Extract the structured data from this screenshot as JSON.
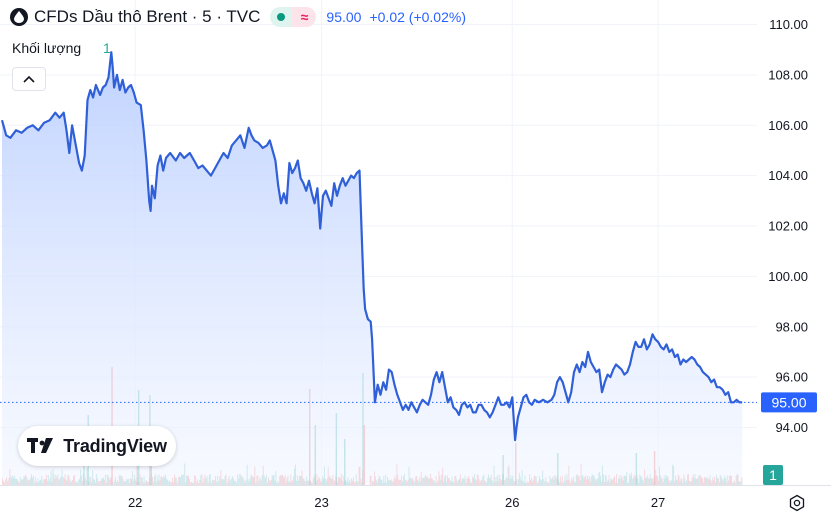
{
  "header": {
    "title": "CFDs Dầu thô Brent · 5 · TVC",
    "approx_symbol": "≈",
    "price": "95.00",
    "change": "+0.02 (+0.02%)"
  },
  "volume_indicator": {
    "label": "Khối lượng",
    "value": "1",
    "axis_badge": "1"
  },
  "logo": {
    "text": "TradingView"
  },
  "icons": {
    "symbol": "drop-icon",
    "market_status": "green-dot-icon",
    "collapse": "chevron-up-icon",
    "settings": "gear-icon"
  },
  "colors": {
    "line": "#3060d8",
    "area_top": "#bcd0ff",
    "area_bottom": "#f2f6ff",
    "up_volume": "#26a69a",
    "down_volume": "#ef5350",
    "last_price_label": "#2962ff",
    "volume_badge": "#26a69a"
  },
  "chart_data": {
    "type": "area",
    "title": "CFDs Dầu thô Brent · 5 · TVC",
    "xlabel": "",
    "ylabel": "",
    "x_ticks": [
      {
        "label": "22",
        "x": 95
      },
      {
        "label": "23",
        "x": 228
      },
      {
        "label": "26",
        "x": 364
      },
      {
        "label": "27",
        "x": 468
      }
    ],
    "y_ticks": [
      "94.00",
      "96.00",
      "98.00",
      "100.00",
      "102.00",
      "104.00",
      "106.00",
      "108.00",
      "110.00"
    ],
    "ylim": [
      92.5,
      111
    ],
    "xlim": [
      0,
      540
    ],
    "last_price": "95.00",
    "grid": true,
    "series": [
      {
        "values": [
          [
            0,
            106.2
          ],
          [
            3,
            105.6
          ],
          [
            6,
            105.5
          ],
          [
            10,
            105.8
          ],
          [
            14,
            105.7
          ],
          [
            18,
            105.9
          ],
          [
            22,
            106.0
          ],
          [
            26,
            105.8
          ],
          [
            30,
            106.1
          ],
          [
            34,
            106.2
          ],
          [
            38,
            106.5
          ],
          [
            41,
            106.3
          ],
          [
            44,
            106.5
          ],
          [
            46,
            105.8
          ],
          [
            48,
            104.9
          ],
          [
            50,
            106.0
          ],
          [
            52,
            105.4
          ],
          [
            55,
            104.5
          ],
          [
            57,
            104.2
          ],
          [
            59,
            104.8
          ],
          [
            61,
            107.0
          ],
          [
            63,
            107.4
          ],
          [
            65,
            107.1
          ],
          [
            67,
            107.6
          ],
          [
            70,
            107.2
          ],
          [
            72,
            107.5
          ],
          [
            74,
            107.6
          ],
          [
            76,
            107.9
          ],
          [
            78,
            108.9
          ],
          [
            79,
            108.3
          ],
          [
            80,
            107.5
          ],
          [
            82,
            108.0
          ],
          [
            84,
            107.4
          ],
          [
            86,
            107.8
          ],
          [
            88,
            107.3
          ],
          [
            90,
            107.5
          ],
          [
            92,
            107.6
          ],
          [
            94,
            107.3
          ],
          [
            96,
            106.9
          ],
          [
            99,
            106.8
          ],
          [
            101,
            105.8
          ],
          [
            103,
            104.6
          ],
          [
            105,
            103.0
          ],
          [
            106,
            102.6
          ],
          [
            107,
            103.6
          ],
          [
            109,
            103.1
          ],
          [
            111,
            104.4
          ],
          [
            113,
            104.8
          ],
          [
            115,
            104.2
          ],
          [
            117,
            104.7
          ],
          [
            120,
            104.9
          ],
          [
            124,
            104.6
          ],
          [
            127,
            104.9
          ],
          [
            130,
            104.7
          ],
          [
            134,
            104.9
          ],
          [
            137,
            104.6
          ],
          [
            140,
            104.3
          ],
          [
            143,
            104.4
          ],
          [
            146,
            104.2
          ],
          [
            149,
            104.0
          ],
          [
            152,
            104.3
          ],
          [
            155,
            104.6
          ],
          [
            158,
            104.9
          ],
          [
            161,
            104.7
          ],
          [
            164,
            105.2
          ],
          [
            167,
            105.4
          ],
          [
            170,
            105.6
          ],
          [
            173,
            105.1
          ],
          [
            176,
            105.9
          ],
          [
            178,
            105.6
          ],
          [
            180,
            105.4
          ],
          [
            183,
            105.3
          ],
          [
            186,
            105.1
          ],
          [
            189,
            105.2
          ],
          [
            191,
            105.4
          ],
          [
            193,
            105.0
          ],
          [
            195,
            104.6
          ],
          [
            197,
            103.6
          ],
          [
            199,
            102.9
          ],
          [
            201,
            103.3
          ],
          [
            203,
            102.9
          ],
          [
            205,
            104.5
          ],
          [
            207,
            104.1
          ],
          [
            209,
            104.3
          ],
          [
            211,
            104.6
          ],
          [
            213,
            103.9
          ],
          [
            215,
            103.7
          ],
          [
            217,
            103.4
          ],
          [
            219,
            103.8
          ],
          [
            221,
            103.3
          ],
          [
            223,
            102.9
          ],
          [
            225,
            103.5
          ],
          [
            227,
            101.9
          ],
          [
            229,
            103.2
          ],
          [
            231,
            103.4
          ],
          [
            233,
            103.1
          ],
          [
            235,
            102.8
          ],
          [
            237,
            103.7
          ],
          [
            239,
            103.2
          ],
          [
            241,
            103.6
          ],
          [
            243,
            103.9
          ],
          [
            245,
            103.6
          ],
          [
            247,
            103.8
          ],
          [
            249,
            104.0
          ],
          [
            251,
            103.9
          ],
          [
            253,
            104.1
          ],
          [
            255,
            104.2
          ],
          [
            257,
            101.0
          ],
          [
            258,
            99.5
          ],
          [
            259,
            98.7
          ],
          [
            261,
            98.3
          ],
          [
            263,
            98.2
          ],
          [
            264,
            97.5
          ],
          [
            266,
            95.0
          ],
          [
            268,
            95.7
          ],
          [
            270,
            95.3
          ],
          [
            272,
            95.8
          ],
          [
            274,
            95.5
          ],
          [
            276,
            96.3
          ],
          [
            278,
            96.2
          ],
          [
            280,
            95.7
          ],
          [
            282,
            95.3
          ],
          [
            284,
            95.0
          ],
          [
            286,
            94.7
          ],
          [
            288,
            94.9
          ],
          [
            290,
            94.7
          ],
          [
            292,
            95.0
          ],
          [
            294,
            94.8
          ],
          [
            296,
            94.6
          ],
          [
            298,
            94.9
          ],
          [
            300,
            95.1
          ],
          [
            302,
            95.0
          ],
          [
            304,
            94.9
          ],
          [
            306,
            95.3
          ],
          [
            308,
            95.9
          ],
          [
            310,
            96.2
          ],
          [
            312,
            95.8
          ],
          [
            314,
            96.2
          ],
          [
            316,
            95.6
          ],
          [
            318,
            95.0
          ],
          [
            320,
            95.2
          ],
          [
            322,
            94.8
          ],
          [
            324,
            94.7
          ],
          [
            326,
            94.5
          ],
          [
            328,
            94.9
          ],
          [
            330,
            95.0
          ],
          [
            332,
            94.8
          ],
          [
            334,
            94.9
          ],
          [
            336,
            94.6
          ],
          [
            338,
            94.6
          ],
          [
            340,
            94.9
          ],
          [
            342,
            94.9
          ],
          [
            344,
            94.7
          ],
          [
            346,
            94.6
          ],
          [
            348,
            94.4
          ],
          [
            350,
            94.6
          ],
          [
            352,
            94.9
          ],
          [
            354,
            95.2
          ],
          [
            356,
            94.9
          ],
          [
            358,
            94.9
          ],
          [
            360,
            95.0
          ],
          [
            362,
            94.8
          ],
          [
            364,
            95.2
          ],
          [
            366,
            93.5
          ],
          [
            367,
            94.0
          ],
          [
            368,
            94.4
          ],
          [
            370,
            94.8
          ],
          [
            372,
            95.2
          ],
          [
            374,
            95.3
          ],
          [
            376,
            95.0
          ],
          [
            378,
            94.9
          ],
          [
            380,
            95.1
          ],
          [
            383,
            95.0
          ],
          [
            386,
            95.1
          ],
          [
            389,
            95.0
          ],
          [
            392,
            95.1
          ],
          [
            394,
            95.3
          ],
          [
            396,
            95.8
          ],
          [
            398,
            96.0
          ],
          [
            400,
            95.8
          ],
          [
            402,
            95.4
          ],
          [
            404,
            95.0
          ],
          [
            406,
            95.4
          ],
          [
            408,
            96.2
          ],
          [
            410,
            96.5
          ],
          [
            412,
            96.2
          ],
          [
            414,
            96.6
          ],
          [
            416,
            96.4
          ],
          [
            418,
            97.0
          ],
          [
            420,
            96.6
          ],
          [
            422,
            96.4
          ],
          [
            424,
            96.2
          ],
          [
            426,
            96.3
          ],
          [
            428,
            95.4
          ],
          [
            430,
            95.8
          ],
          [
            432,
            96.1
          ],
          [
            434,
            96.0
          ],
          [
            436,
            96.3
          ],
          [
            438,
            96.5
          ],
          [
            440,
            96.4
          ],
          [
            442,
            96.3
          ],
          [
            444,
            96.1
          ],
          [
            446,
            96.2
          ],
          [
            448,
            96.5
          ],
          [
            450,
            97.0
          ],
          [
            452,
            97.4
          ],
          [
            454,
            97.2
          ],
          [
            456,
            97.2
          ],
          [
            458,
            97.5
          ],
          [
            460,
            97.1
          ],
          [
            462,
            97.3
          ],
          [
            464,
            97.7
          ],
          [
            466,
            97.5
          ],
          [
            468,
            97.4
          ],
          [
            470,
            97.2
          ],
          [
            472,
            97.1
          ],
          [
            474,
            97.3
          ],
          [
            476,
            97.0
          ],
          [
            478,
            97.1
          ],
          [
            480,
            96.8
          ],
          [
            482,
            96.9
          ],
          [
            484,
            96.5
          ],
          [
            486,
            96.7
          ],
          [
            488,
            96.6
          ],
          [
            490,
            96.7
          ],
          [
            492,
            96.8
          ],
          [
            494,
            96.7
          ],
          [
            496,
            96.5
          ],
          [
            498,
            96.4
          ],
          [
            500,
            96.2
          ],
          [
            502,
            96.1
          ],
          [
            504,
            96.0
          ],
          [
            506,
            95.8
          ],
          [
            508,
            95.9
          ],
          [
            510,
            95.6
          ],
          [
            512,
            95.6
          ],
          [
            514,
            95.5
          ],
          [
            516,
            95.3
          ],
          [
            518,
            95.4
          ],
          [
            520,
            95.0
          ],
          [
            522,
            95.0
          ],
          [
            524,
            95.1
          ],
          [
            526,
            95.0
          ],
          [
            528,
            95.0
          ]
        ]
      }
    ],
    "volume_spikes": [
      {
        "x": 58,
        "v": 42,
        "dir": "up"
      },
      {
        "x": 61,
        "v": 70,
        "dir": "up"
      },
      {
        "x": 78,
        "v": 118,
        "dir": "down"
      },
      {
        "x": 96,
        "v": 58,
        "dir": "down"
      },
      {
        "x": 97,
        "v": 95,
        "dir": "up"
      },
      {
        "x": 105,
        "v": 90,
        "dir": "up"
      },
      {
        "x": 106,
        "v": 48,
        "dir": "down"
      },
      {
        "x": 219,
        "v": 96,
        "dir": "down"
      },
      {
        "x": 223,
        "v": 60,
        "dir": "up"
      },
      {
        "x": 238,
        "v": 72,
        "dir": "up"
      },
      {
        "x": 244,
        "v": 46,
        "dir": "up"
      },
      {
        "x": 257,
        "v": 112,
        "dir": "up"
      },
      {
        "x": 258,
        "v": 60,
        "dir": "down"
      },
      {
        "x": 357,
        "v": 30,
        "dir": "up"
      },
      {
        "x": 366,
        "v": 42,
        "dir": "down"
      },
      {
        "x": 396,
        "v": 32,
        "dir": "up"
      },
      {
        "x": 452,
        "v": 32,
        "dir": "up"
      },
      {
        "x": 465,
        "v": 34,
        "dir": "down"
      }
    ]
  }
}
